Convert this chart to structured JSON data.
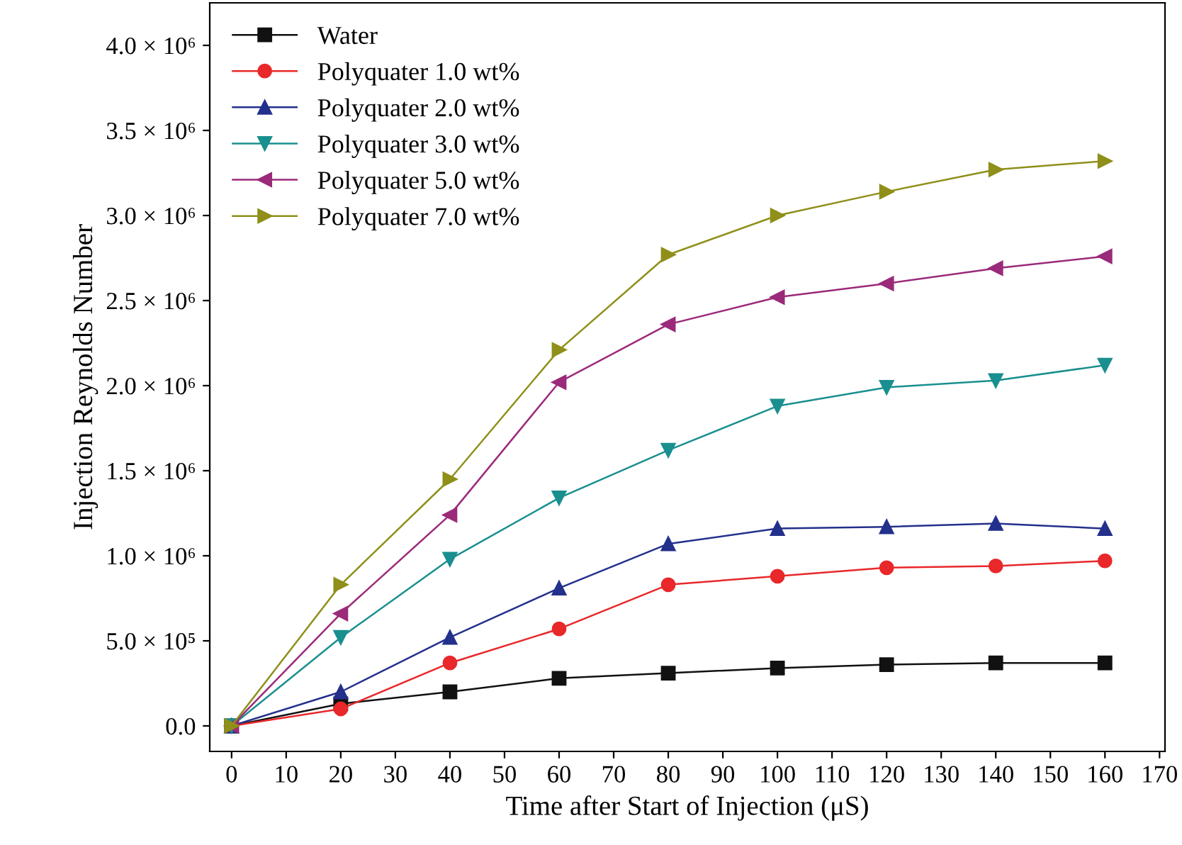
{
  "chart_data": {
    "type": "line",
    "xlabel": "Time after Start of Injection (μS)",
    "ylabel": "Injection Reynolds Number",
    "x": [
      0,
      20,
      40,
      60,
      80,
      100,
      120,
      140,
      160
    ],
    "series": [
      {
        "name": "Water",
        "color": "#111111",
        "marker": "square",
        "values": [
          0,
          130000,
          200000,
          280000,
          310000,
          340000,
          360000,
          370000,
          370000
        ]
      },
      {
        "name": "Polyquater 1.0 wt%",
        "color": "#e8282a",
        "marker": "circle",
        "values": [
          0,
          100000,
          370000,
          570000,
          830000,
          880000,
          930000,
          940000,
          970000
        ]
      },
      {
        "name": "Polyquater 2.0 wt%",
        "color": "#23308c",
        "marker": "triangle",
        "values": [
          0,
          200000,
          520000,
          810000,
          1070000,
          1160000,
          1170000,
          1190000,
          1160000
        ]
      },
      {
        "name": "Polyquater 3.0 wt%",
        "color": "#1a8f8f",
        "marker": "triangle_down",
        "values": [
          0,
          520000,
          980000,
          1340000,
          1620000,
          1880000,
          1990000,
          2030000,
          2120000
        ]
      },
      {
        "name": "Polyquater 5.0 wt%",
        "color": "#9b2a7a",
        "marker": "triangle_left",
        "values": [
          0,
          660000,
          1240000,
          2020000,
          2360000,
          2520000,
          2600000,
          2690000,
          2760000
        ]
      },
      {
        "name": "Polyquater 7.0 wt%",
        "color": "#8f8f1a",
        "marker": "triangle_right",
        "values": [
          0,
          830000,
          1450000,
          2210000,
          2770000,
          3000000,
          3140000,
          3270000,
          3320000
        ]
      }
    ],
    "xlim": [
      -4,
      171
    ],
    "xticks": [
      0,
      10,
      20,
      30,
      40,
      50,
      60,
      70,
      80,
      90,
      100,
      110,
      120,
      130,
      140,
      150,
      160,
      170
    ],
    "ylim": [
      -150000,
      4250000
    ],
    "yticks": [
      {
        "value": 0,
        "label": "0.0"
      },
      {
        "value": 500000,
        "label": "5.0 × 10⁵"
      },
      {
        "value": 1000000,
        "label": "1.0 × 10⁶"
      },
      {
        "value": 1500000,
        "label": "1.5 × 10⁶"
      },
      {
        "value": 2000000,
        "label": "2.0 × 10⁶"
      },
      {
        "value": 2500000,
        "label": "2.5 × 10⁶"
      },
      {
        "value": 3000000,
        "label": "3.0 × 10⁶"
      },
      {
        "value": 3500000,
        "label": "3.5 × 10⁶"
      },
      {
        "value": 4000000,
        "label": "4.0 × 10⁶"
      }
    ],
    "legend": "top left",
    "grid": false,
    "line_style": "solid"
  }
}
